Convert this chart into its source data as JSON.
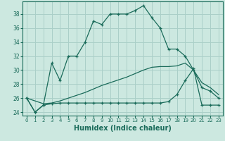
{
  "xlabel": "Humidex (Indice chaleur)",
  "bg_color": "#cce8e0",
  "grid_color": "#aacfc8",
  "line_color": "#1a6b5a",
  "xlim": [
    -0.5,
    23.5
  ],
  "ylim": [
    23.5,
    39.8
  ],
  "xticks": [
    0,
    1,
    2,
    3,
    4,
    5,
    6,
    7,
    8,
    9,
    10,
    11,
    12,
    13,
    14,
    15,
    16,
    17,
    18,
    19,
    20,
    21,
    22,
    23
  ],
  "yticks": [
    24,
    26,
    28,
    30,
    32,
    34,
    36,
    38
  ],
  "line1_x": [
    0,
    1,
    2,
    3,
    4,
    5,
    6,
    7,
    8,
    9,
    10,
    11,
    12,
    13,
    14,
    15,
    16,
    17,
    18,
    19,
    20,
    21,
    22,
    23
  ],
  "line1_y": [
    26,
    24,
    25,
    31,
    28.5,
    32,
    32,
    34,
    37,
    36.5,
    38,
    38,
    38,
    38.5,
    39.2,
    37.5,
    36,
    33,
    33,
    32,
    30,
    27.5,
    27,
    26
  ],
  "line2_x": [
    0,
    1,
    2,
    3,
    4,
    5,
    6,
    7,
    8,
    9,
    10,
    11,
    12,
    13,
    14,
    15,
    16,
    17,
    18,
    19,
    20,
    21,
    22,
    23
  ],
  "line2_y": [
    26,
    24,
    25,
    25.2,
    25.3,
    25.3,
    25.3,
    25.3,
    25.3,
    25.3,
    25.3,
    25.3,
    25.3,
    25.3,
    25.3,
    25.3,
    25.3,
    25.5,
    26.5,
    28.5,
    30.2,
    25,
    25,
    25
  ],
  "line3_x": [
    0,
    2,
    3,
    4,
    5,
    6,
    7,
    8,
    9,
    10,
    11,
    12,
    13,
    14,
    15,
    16,
    17,
    18,
    19,
    20,
    21,
    22,
    23
  ],
  "line3_y": [
    26,
    25.2,
    25.3,
    25.6,
    26.0,
    26.4,
    26.8,
    27.3,
    27.8,
    28.2,
    28.6,
    29.0,
    29.5,
    30.0,
    30.4,
    30.5,
    30.5,
    30.6,
    31.0,
    30.0,
    28.2,
    27.5,
    26.5
  ]
}
